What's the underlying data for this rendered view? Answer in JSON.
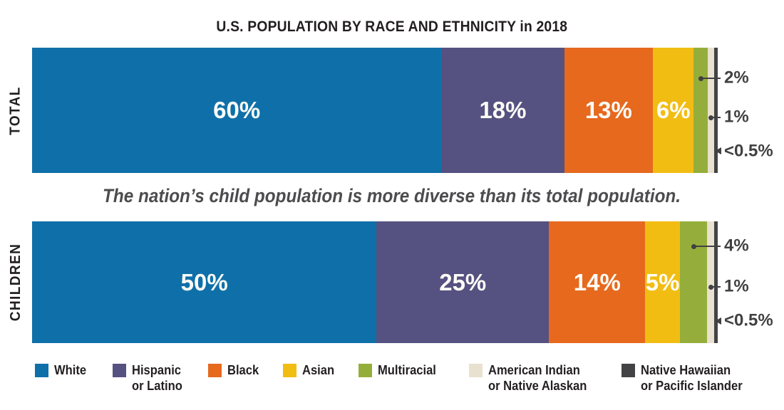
{
  "title": "U.S. POPULATION BY RACE AND ETHNICITY in 2018",
  "subtitle": "The nation’s child population is more diverse than its total population.",
  "colors": {
    "white": "#0f70a9",
    "hispanic": "#555180",
    "black": "#e6691e",
    "asian": "#f2bd13",
    "multiracial": "#95ae3b",
    "american_indian": "#e9e1cf",
    "native_hawaiian": "#434345"
  },
  "chart_data": {
    "type": "bar",
    "subtype": "horizontal-stacked-100percent",
    "unit": "percent",
    "title": "U.S. POPULATION BY RACE AND ETHNICITY in 2018",
    "annotation": "The nation’s child population is more diverse than its total population.",
    "categories": [
      "White",
      "Hispanic or Latino",
      "Black",
      "Asian",
      "Multiracial",
      "American Indian or Native Alaskan",
      "Native Hawaiian or Pacific Islander"
    ],
    "bars": [
      {
        "id": "total",
        "row_label": "TOTAL",
        "segments": [
          {
            "group": "White",
            "key": "white",
            "value": 60,
            "label": "60%",
            "label_inside": true
          },
          {
            "group": "Hispanic or Latino",
            "key": "hispanic",
            "value": 18,
            "label": "18%",
            "label_inside": true
          },
          {
            "group": "Black",
            "key": "black",
            "value": 13,
            "label": "13%",
            "label_inside": true
          },
          {
            "group": "Asian",
            "key": "asian",
            "value": 6,
            "label": "6%",
            "label_inside": true
          },
          {
            "group": "Multiracial",
            "key": "multiracial",
            "value": 2,
            "label": "2%",
            "label_inside": false
          },
          {
            "group": "American Indian or Native Alaskan",
            "key": "american_indian",
            "value": 1,
            "label": "1%",
            "label_inside": false
          },
          {
            "group": "Native Hawaiian or Pacific Islander",
            "key": "native_hawaiian",
            "value": 0.5,
            "label": "<0.5%",
            "label_inside": false
          }
        ]
      },
      {
        "id": "children",
        "row_label": "CHILDREN",
        "segments": [
          {
            "group": "White",
            "key": "white",
            "value": 50,
            "label": "50%",
            "label_inside": true
          },
          {
            "group": "Hispanic or Latino",
            "key": "hispanic",
            "value": 25,
            "label": "25%",
            "label_inside": true
          },
          {
            "group": "Black",
            "key": "black",
            "value": 14,
            "label": "14%",
            "label_inside": true
          },
          {
            "group": "Asian",
            "key": "asian",
            "value": 5,
            "label": "5%",
            "label_inside": true
          },
          {
            "group": "Multiracial",
            "key": "multiracial",
            "value": 4,
            "label": "4%",
            "label_inside": false
          },
          {
            "group": "American Indian or Native Alaskan",
            "key": "american_indian",
            "value": 1,
            "label": "1%",
            "label_inside": false
          },
          {
            "group": "Native Hawaiian or Pacific Islander",
            "key": "native_hawaiian",
            "value": 0.5,
            "label": "<0.5%",
            "label_inside": false
          }
        ]
      }
    ],
    "legend_position": "bottom"
  },
  "legend": {
    "items": [
      {
        "key": "white",
        "line1": "White",
        "line2": ""
      },
      {
        "key": "hispanic",
        "line1": "Hispanic",
        "line2": "or Latino"
      },
      {
        "key": "black",
        "line1": "Black",
        "line2": ""
      },
      {
        "key": "asian",
        "line1": "Asian",
        "line2": ""
      },
      {
        "key": "multiracial",
        "line1": "Multiracial",
        "line2": ""
      },
      {
        "key": "american_indian",
        "line1": "American Indian",
        "line2": "or Native Alaskan"
      },
      {
        "key": "native_hawaiian",
        "line1": "Native Hawaiian",
        "line2": "or Pacific Islander"
      }
    ]
  }
}
